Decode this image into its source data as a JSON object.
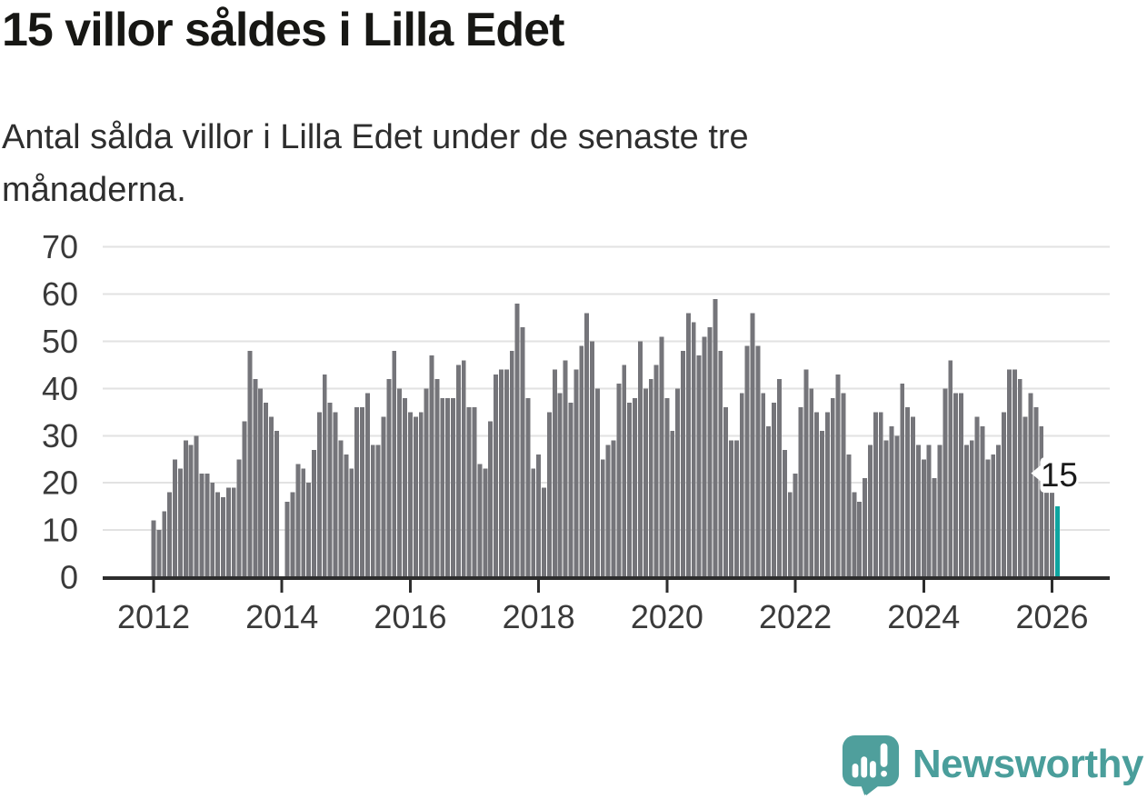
{
  "page": {
    "title": "15 villor såldes i Lilla Edet",
    "subtitle": "Antal sålda villor i Lilla Edet under de senaste tre månaderna."
  },
  "chart_data": {
    "type": "bar",
    "title": "15 villor såldes i Lilla Edet",
    "subtitle": "Antal sålda villor i Lilla Edet under de senaste tre månaderna.",
    "x_start": "2012-01",
    "frequency": "monthly",
    "ylim": [
      0,
      70
    ],
    "y_ticks": [
      0,
      10,
      20,
      30,
      40,
      50,
      60,
      70
    ],
    "x_tick_labels": [
      "2012",
      "2014",
      "2016",
      "2018",
      "2020",
      "2022",
      "2024",
      "2026"
    ],
    "grid": "horizontal",
    "bar_color": "#75757a",
    "highlight_color": "#0ea5a0",
    "values": [
      12,
      10,
      14,
      18,
      25,
      23,
      29,
      28,
      30,
      22,
      22,
      20,
      18,
      17,
      19,
      19,
      25,
      33,
      48,
      42,
      40,
      37,
      34,
      31,
      0,
      16,
      18,
      24,
      23,
      20,
      27,
      35,
      43,
      37,
      35,
      29,
      26,
      23,
      36,
      36,
      39,
      28,
      28,
      34,
      42,
      48,
      40,
      38,
      35,
      34,
      35,
      40,
      47,
      42,
      38,
      38,
      38,
      45,
      46,
      36,
      36,
      24,
      23,
      33,
      43,
      44,
      44,
      48,
      58,
      53,
      38,
      23,
      26,
      19,
      35,
      44,
      39,
      46,
      37,
      44,
      49,
      56,
      50,
      40,
      25,
      28,
      29,
      41,
      45,
      37,
      38,
      50,
      40,
      42,
      45,
      51,
      38,
      31,
      40,
      48,
      56,
      54,
      47,
      51,
      53,
      59,
      48,
      36,
      29,
      29,
      39,
      49,
      56,
      49,
      39,
      32,
      37,
      42,
      27,
      18,
      22,
      36,
      44,
      40,
      35,
      31,
      35,
      38,
      43,
      39,
      26,
      18,
      16,
      21,
      28,
      35,
      35,
      29,
      32,
      30,
      41,
      36,
      34,
      28,
      25,
      28,
      21,
      28,
      40,
      46,
      39,
      39,
      28,
      29,
      34,
      32,
      25,
      26,
      28,
      35,
      44,
      44,
      42,
      34,
      39,
      36,
      32,
      22,
      18,
      15
    ],
    "highlight": {
      "index": 169,
      "label": "15",
      "value": 15
    }
  },
  "annotation": {
    "label": "15"
  },
  "logo": {
    "text": "Newsworthy",
    "color": "#4a9e9b"
  }
}
